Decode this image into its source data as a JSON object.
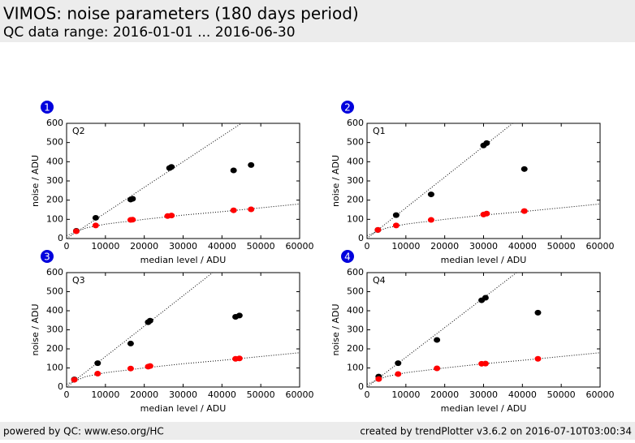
{
  "header": {
    "title": "VIMOS: noise parameters (180 days period)",
    "subtitle": "QC data range: 2016-01-01 ... 2016-06-30"
  },
  "footer": {
    "left": "powered by QC: www.eso.org/HC",
    "right": "created by trendPlotter v3.6.2 on 2016-07-10T03:00:34"
  },
  "chart_data": [
    {
      "type": "scatter",
      "badge": "1",
      "label": "Q2",
      "xlabel": "median level / ADU",
      "ylabel": "noise / ADU",
      "xlim": [
        0,
        60000
      ],
      "ylim": [
        0,
        600
      ],
      "xticks": [
        0,
        10000,
        20000,
        30000,
        40000,
        50000,
        60000
      ],
      "yticks": [
        0,
        100,
        200,
        300,
        400,
        500,
        600
      ],
      "series": [
        {
          "color": "#000000",
          "x": [
            2500,
            7500,
            16500,
            17000,
            26500,
            27000,
            43000,
            47500
          ],
          "values": [
            40,
            108,
            203,
            207,
            367,
            373,
            355,
            383
          ]
        },
        {
          "color": "#ff0000",
          "x": [
            2500,
            7500,
            16500,
            17000,
            26000,
            27000,
            43000,
            47500
          ],
          "values": [
            38,
            68,
            97,
            98,
            117,
            120,
            147,
            152
          ]
        }
      ],
      "fit_lines": [
        {
          "x": [
            0,
            45000
          ],
          "y": [
            0,
            600
          ]
        },
        {
          "x": [
            0,
            5000,
            10000,
            20000,
            30000,
            40000,
            50000,
            60000
          ],
          "y": [
            15,
            55,
            75,
            100,
            122,
            140,
            160,
            180
          ]
        }
      ]
    },
    {
      "type": "scatter",
      "badge": "2",
      "label": "Q1",
      "xlabel": "median level / ADU",
      "ylabel": "noise / ADU",
      "xlim": [
        0,
        60000
      ],
      "ylim": [
        0,
        600
      ],
      "xticks": [
        0,
        10000,
        20000,
        30000,
        40000,
        50000,
        60000
      ],
      "yticks": [
        0,
        100,
        200,
        300,
        400,
        500,
        600
      ],
      "series": [
        {
          "color": "#000000",
          "x": [
            2800,
            7500,
            16500,
            30000,
            30800,
            40500
          ],
          "values": [
            45,
            122,
            230,
            485,
            497,
            362
          ]
        },
        {
          "color": "#ff0000",
          "x": [
            2800,
            7500,
            16500,
            30000,
            30800,
            40500
          ],
          "values": [
            45,
            68,
            97,
            125,
            130,
            143
          ]
        }
      ],
      "fit_lines": [
        {
          "x": [
            0,
            37500
          ],
          "y": [
            0,
            600
          ]
        },
        {
          "x": [
            0,
            5000,
            10000,
            20000,
            30000,
            40000,
            50000,
            60000
          ],
          "y": [
            15,
            55,
            75,
            100,
            122,
            140,
            160,
            180
          ]
        }
      ]
    },
    {
      "type": "scatter",
      "badge": "3",
      "label": "Q3",
      "xlabel": "median level / ADU",
      "ylabel": "noise / ADU",
      "xlim": [
        0,
        60000
      ],
      "ylim": [
        0,
        600
      ],
      "xticks": [
        0,
        10000,
        20000,
        30000,
        40000,
        50000,
        60000
      ],
      "yticks": [
        0,
        100,
        200,
        300,
        400,
        500,
        600
      ],
      "series": [
        {
          "color": "#000000",
          "x": [
            2000,
            8000,
            16500,
            21000,
            21500,
            43500,
            44500
          ],
          "values": [
            40,
            125,
            228,
            340,
            348,
            368,
            375
          ]
        },
        {
          "color": "#ff0000",
          "x": [
            2000,
            8000,
            16500,
            21000,
            21500,
            43500,
            44500
          ],
          "values": [
            38,
            70,
            97,
            107,
            110,
            148,
            150
          ]
        }
      ],
      "fit_lines": [
        {
          "x": [
            0,
            37600
          ],
          "y": [
            0,
            600
          ]
        },
        {
          "x": [
            0,
            5000,
            10000,
            20000,
            30000,
            40000,
            50000,
            60000
          ],
          "y": [
            15,
            55,
            75,
            100,
            122,
            140,
            160,
            180
          ]
        }
      ]
    },
    {
      "type": "scatter",
      "badge": "4",
      "label": "Q4",
      "xlabel": "median level / ADU",
      "ylabel": "noise / ADU",
      "xlim": [
        0,
        60000
      ],
      "ylim": [
        0,
        600
      ],
      "xticks": [
        0,
        10000,
        20000,
        30000,
        40000,
        50000,
        60000
      ],
      "yticks": [
        0,
        100,
        200,
        300,
        400,
        500,
        600
      ],
      "series": [
        {
          "color": "#000000",
          "x": [
            3000,
            8000,
            18000,
            29500,
            30500,
            44000
          ],
          "values": [
            55,
            125,
            247,
            455,
            468,
            390
          ]
        },
        {
          "color": "#ff0000",
          "x": [
            3000,
            8000,
            18000,
            29500,
            30500,
            44000
          ],
          "values": [
            42,
            68,
            98,
            122,
            123,
            148
          ]
        }
      ],
      "fit_lines": [
        {
          "x": [
            0,
            38500
          ],
          "y": [
            0,
            600
          ]
        },
        {
          "x": [
            0,
            5000,
            10000,
            20000,
            30000,
            40000,
            50000,
            60000
          ],
          "y": [
            15,
            55,
            75,
            100,
            122,
            140,
            160,
            180
          ]
        }
      ]
    }
  ]
}
